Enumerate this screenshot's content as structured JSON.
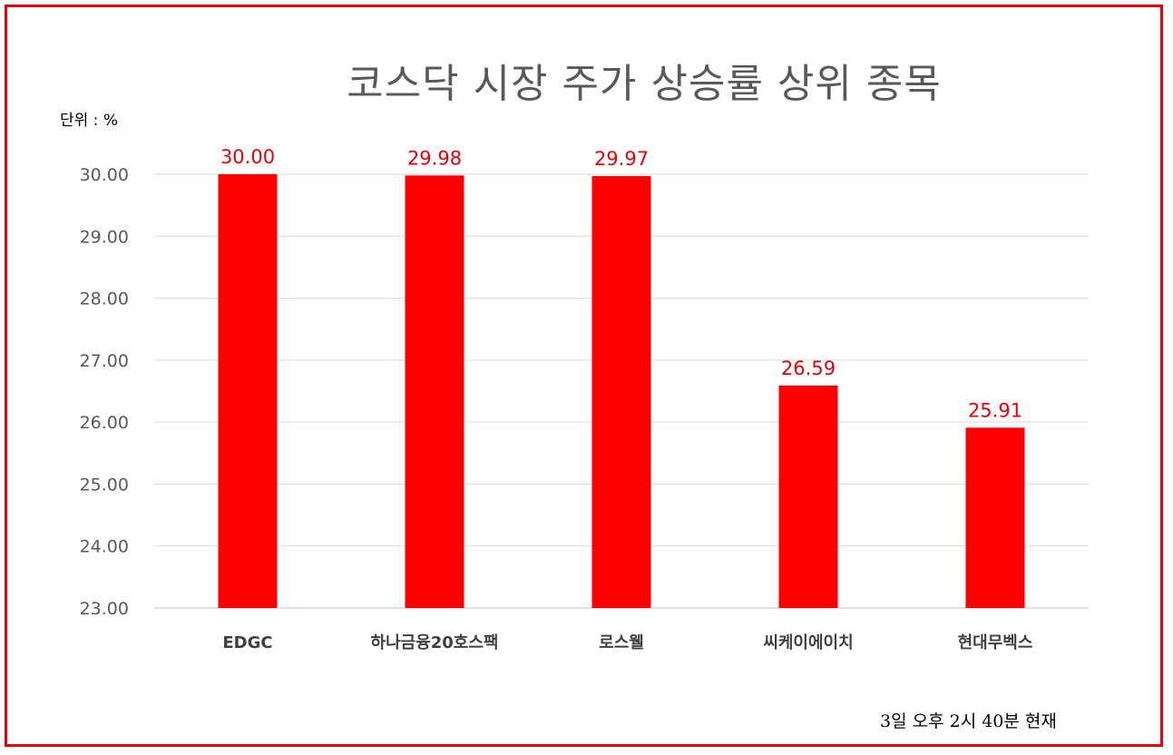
{
  "chart_data": {
    "type": "bar",
    "title": "코스닥 시장 주가 상승률 상위 종목",
    "unit_label": "단위 : %",
    "note": "3일  오후 2시 40분 현재",
    "categories": [
      "EDGC",
      "하나금융20호스팩",
      "로스웰",
      "씨케이에이치",
      "현대무벡스"
    ],
    "values": [
      30.0,
      29.98,
      29.97,
      26.59,
      25.91
    ],
    "data_labels": [
      "30.00",
      "29.98",
      "29.97",
      "26.59",
      "25.91"
    ],
    "y_ticks": [
      "30.00",
      "29.00",
      "28.00",
      "27.00",
      "26.00",
      "25.00",
      "24.00",
      "23.00"
    ],
    "ylim": [
      23,
      30
    ],
    "grid": true,
    "bar_color": "#ff0000",
    "label_color": "#e8000b",
    "frame_color": "#e8000b"
  }
}
